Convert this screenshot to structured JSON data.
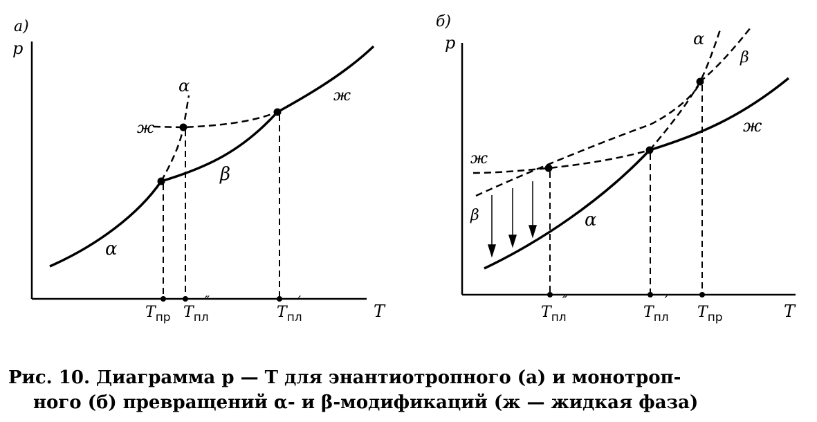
{
  "panel_a": {
    "tag": "а)",
    "axis_p": "p",
    "axis_T": "T",
    "phase_alpha_upper": "α",
    "phase_alpha_lower": "α",
    "phase_beta": "β",
    "phase_liquid_left": "ж",
    "phase_liquid_right": "ж",
    "tick_1": {
      "main": "T",
      "sub": "пр",
      "sup": ""
    },
    "tick_2": {
      "main": "T",
      "sub": "пл",
      "sup": "″"
    },
    "tick_3": {
      "main": "T",
      "sub": "пл",
      "sup": "′"
    }
  },
  "panel_b": {
    "tag": "б)",
    "axis_p": "p",
    "axis_T": "T",
    "phase_alpha_upper": "α",
    "phase_alpha_lower": "α",
    "phase_beta_upper": "β",
    "phase_beta_left": "β",
    "phase_liquid_left": "ж",
    "phase_liquid_right": "ж",
    "tick_1": {
      "main": "T",
      "sub": "пл",
      "sup": "″"
    },
    "tick_2": {
      "main": "T",
      "sub": "пл",
      "sup": "′"
    },
    "tick_3": {
      "main": "T",
      "sub": "пр",
      "sup": ""
    }
  },
  "caption": {
    "line1": "Рис. 10. Диаграмма p — T для энантиотропного (а) и монотроп-",
    "line2": "ного (б) превращений α- и β-модификаций (ж — жидкая фаза)"
  }
}
